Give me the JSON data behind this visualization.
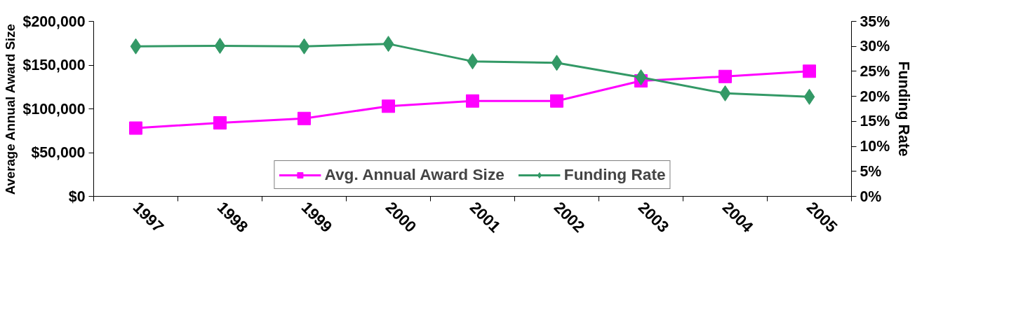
{
  "chart_data": {
    "type": "line",
    "categories": [
      "1997",
      "1998",
      "1999",
      "2000",
      "2001",
      "2002",
      "2003",
      "2004",
      "2005"
    ],
    "ylabel": "Average Annual Award Size",
    "y2label": "Funding Rate",
    "ylim": [
      0,
      200000
    ],
    "yticks": [
      {
        "value": 0,
        "label": "$0"
      },
      {
        "value": 50000,
        "label": "$50,000"
      },
      {
        "value": 100000,
        "label": "$100,000"
      },
      {
        "value": 150000,
        "label": "$150,000"
      },
      {
        "value": 200000,
        "label": "$200,000"
      }
    ],
    "y2lim": [
      0,
      35
    ],
    "y2ticks": [
      {
        "value": 0,
        "label": "0%"
      },
      {
        "value": 5,
        "label": "5%"
      },
      {
        "value": 10,
        "label": "10%"
      },
      {
        "value": 15,
        "label": "15%"
      },
      {
        "value": 20,
        "label": "20%"
      },
      {
        "value": 25,
        "label": "25%"
      },
      {
        "value": 30,
        "label": "30%"
      },
      {
        "value": 35,
        "label": "35%"
      }
    ],
    "series": [
      {
        "name": "Avg. Annual Award Size",
        "color": "#ff00ff",
        "marker": "square",
        "values": [
          78000,
          84000,
          89000,
          103000,
          109000,
          109000,
          132000,
          137000,
          143000
        ]
      },
      {
        "name": "Funding Rate",
        "color": "#339966",
        "marker": "diamond",
        "axis": "y2",
        "values": [
          30.0,
          30.1,
          30.0,
          30.5,
          27.0,
          26.7,
          23.8,
          20.6,
          19.9
        ]
      }
    ],
    "grid": false,
    "legend": "bottom",
    "line_style": "solid"
  }
}
